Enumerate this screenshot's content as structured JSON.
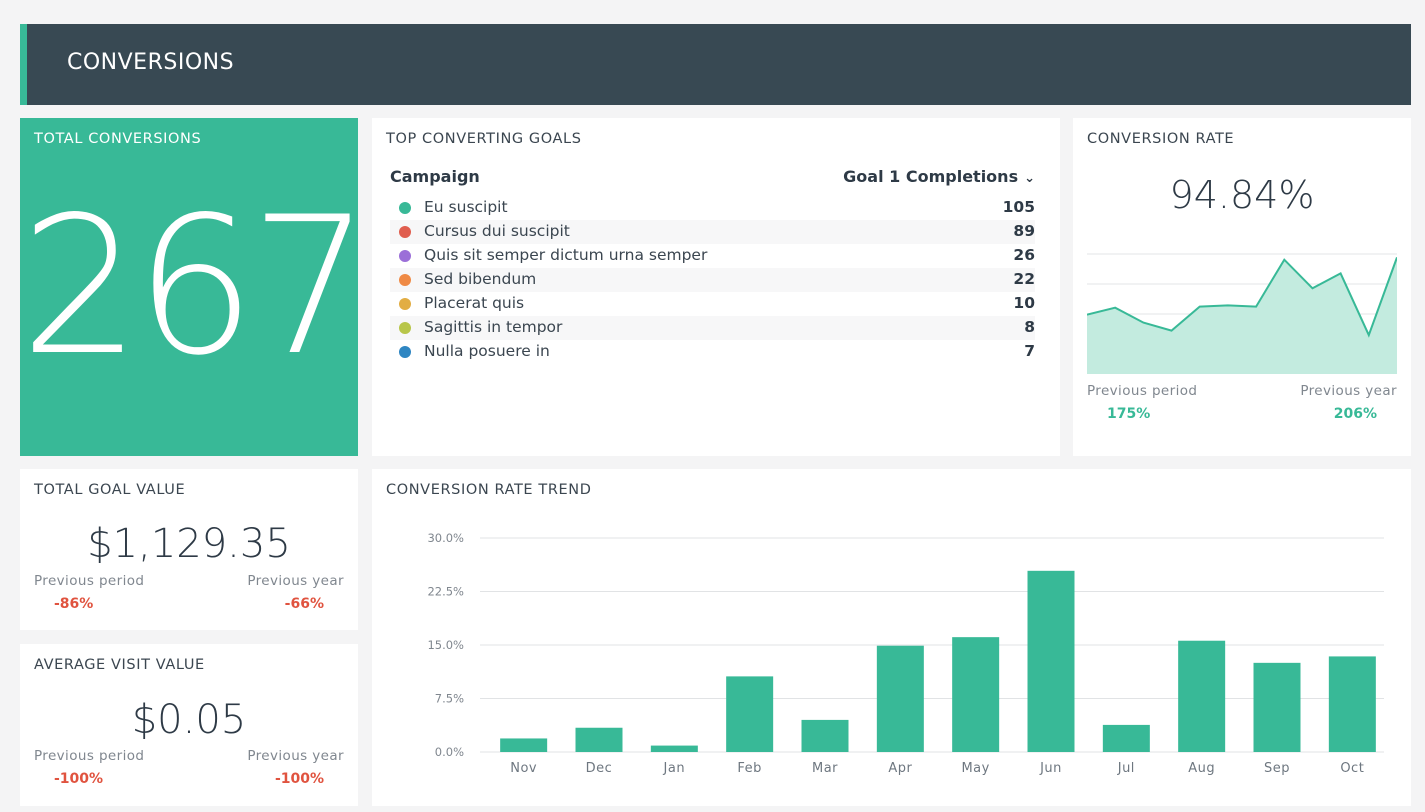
{
  "header": {
    "title": "CONVERSIONS"
  },
  "total_conversions": {
    "title": "TOTAL CONVERSIONS",
    "value": "267"
  },
  "top_goals": {
    "title": "TOP CONVERTING GOALS",
    "col_campaign": "Campaign",
    "col_metric": "Goal 1 Completions",
    "rows": [
      {
        "label": "Eu suscipit",
        "value": "105",
        "color": "#38b997"
      },
      {
        "label": "Cursus dui suscipit",
        "value": "89",
        "color": "#e05e4f"
      },
      {
        "label": "Quis sit semper dictum urna semper",
        "value": "26",
        "color": "#9b6fd8"
      },
      {
        "label": "Sed bibendum",
        "value": "22",
        "color": "#ef8a45"
      },
      {
        "label": "Placerat quis",
        "value": "10",
        "color": "#e2ad43"
      },
      {
        "label": "Sagittis in tempor",
        "value": "8",
        "color": "#b8c64a"
      },
      {
        "label": "Nulla posuere in",
        "value": "7",
        "color": "#2f86c2"
      }
    ]
  },
  "conversion_rate": {
    "title": "CONVERSION RATE",
    "value": "94.84%",
    "previous_period_label": "Previous period",
    "previous_period_value": "175%",
    "previous_year_label": "Previous year",
    "previous_year_value": "206%",
    "sparkline": [
      52,
      58,
      45,
      38,
      59,
      60,
      59,
      100,
      75,
      88,
      34,
      102
    ]
  },
  "total_goal_value": {
    "title": "TOTAL GOAL VALUE",
    "value": "$1,129.35",
    "previous_period_label": "Previous period",
    "previous_period_value": "-86%",
    "previous_year_label": "Previous year",
    "previous_year_value": "-66%"
  },
  "average_visit_value": {
    "title": "AVERAGE VISIT VALUE",
    "value": "$0.05",
    "previous_period_label": "Previous period",
    "previous_period_value": "-100%",
    "previous_year_label": "Previous year",
    "previous_year_value": "-100%"
  },
  "trend": {
    "title": "CONVERSION RATE TREND"
  },
  "chart_data": {
    "type": "bar",
    "title": "CONVERSION RATE TREND",
    "categories": [
      "Nov",
      "Dec",
      "Jan",
      "Feb",
      "Mar",
      "Apr",
      "May",
      "Jun",
      "Jul",
      "Aug",
      "Sep",
      "Oct"
    ],
    "values": [
      1.9,
      3.4,
      0.9,
      10.6,
      4.5,
      14.9,
      16.1,
      25.4,
      3.8,
      15.6,
      12.5,
      13.4
    ],
    "ylim": [
      0,
      30
    ],
    "yticks": [
      "0.0%",
      "7.5%",
      "15.0%",
      "22.5%",
      "30.0%"
    ],
    "ytick_values": [
      0,
      7.5,
      15,
      22.5,
      30
    ],
    "grid": true,
    "color": "#38b997"
  }
}
